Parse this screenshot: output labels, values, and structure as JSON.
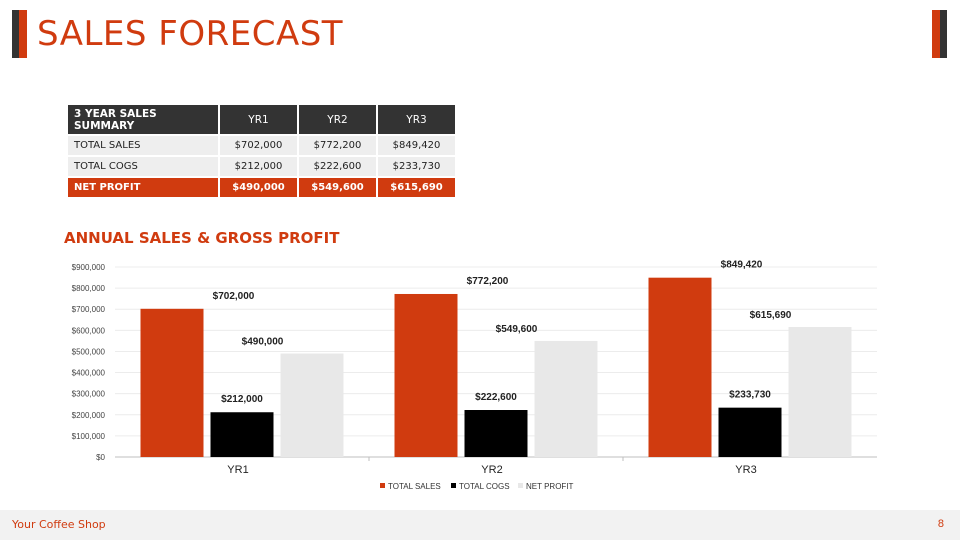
{
  "title": "SALES FORECAST",
  "colors": {
    "accent": "#d03b0f",
    "dark": "#333333",
    "cogs": "#000000",
    "profit": "#e8e8e8"
  },
  "summary": {
    "header": {
      "label": "3 YEAR SALES SUMMARY",
      "yr1": "YR1",
      "yr2": "YR2",
      "yr3": "YR3"
    },
    "rows": [
      {
        "label": "TOTAL SALES",
        "yr1": "$702,000",
        "yr2": "$772,200",
        "yr3": "$849,420"
      },
      {
        "label": "TOTAL COGS",
        "yr1": "$212,000",
        "yr2": "$222,600",
        "yr3": "$233,730"
      },
      {
        "label": "NET PROFIT",
        "yr1": "$490,000",
        "yr2": "$549,600",
        "yr3": "$615,690"
      }
    ]
  },
  "chart_data": {
    "type": "bar",
    "title": "ANNUAL SALES & GROSS PROFIT",
    "categories": [
      "YR1",
      "YR2",
      "YR3"
    ],
    "series": [
      {
        "name": "TOTAL SALES",
        "values": [
          702000,
          772200,
          849420
        ],
        "labels": [
          "$702,000",
          "$772,200",
          "$849,420"
        ],
        "color": "#d03b0f"
      },
      {
        "name": "TOTAL COGS",
        "values": [
          212000,
          222600,
          233730
        ],
        "labels": [
          "$212,000",
          "$222,600",
          "$233,730"
        ],
        "color": "#000000"
      },
      {
        "name": "NET PROFIT",
        "values": [
          490000,
          549600,
          615690
        ],
        "labels": [
          "$490,000",
          "$549,600",
          "$615,690"
        ],
        "color": "#e8e8e8"
      }
    ],
    "ylim": [
      0,
      900000
    ],
    "yticks": [
      "$0",
      "$100,000",
      "$200,000",
      "$300,000",
      "$400,000",
      "$500,000",
      "$600,000",
      "$700,000",
      "$800,000",
      "$900,000"
    ],
    "legend": "bottom"
  },
  "footer": {
    "brand": "Your Coffee Shop",
    "page": "8"
  }
}
